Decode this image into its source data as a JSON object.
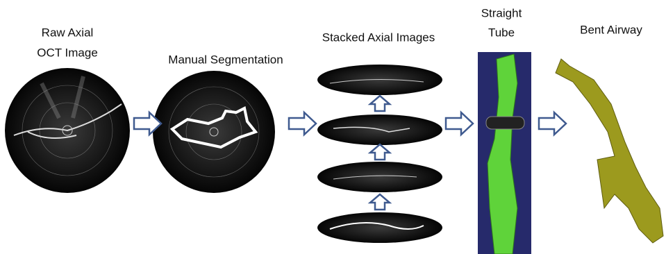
{
  "panels": [
    {
      "label": [
        "Raw Axial",
        "OCT Image"
      ]
    },
    {
      "label": [
        "Manual Segmentation"
      ]
    },
    {
      "label": [
        "Stacked Axial Images"
      ]
    },
    {
      "label": [
        "Straight",
        "Tube"
      ]
    },
    {
      "label": [
        "Bent Airway"
      ]
    }
  ]
}
